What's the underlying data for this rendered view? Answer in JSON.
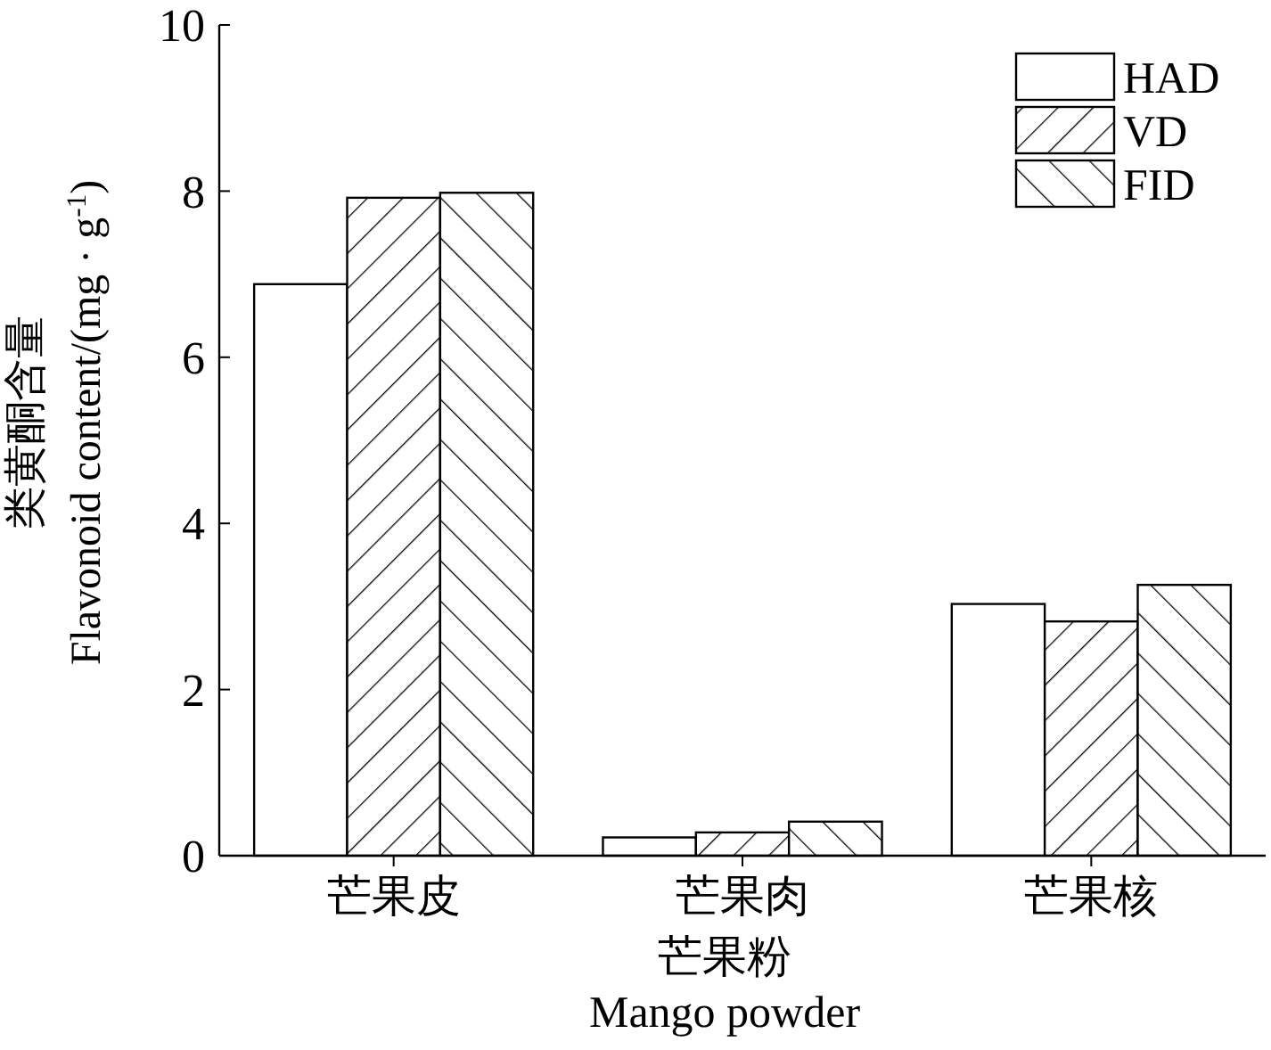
{
  "chart_data": {
    "type": "bar",
    "categories": [
      "芒果皮",
      "芒果肉",
      "芒果核"
    ],
    "xlabel": "芒果粉\nMango powder",
    "ylabel": "类黄酮含量\nFlavonoid content/(mg · g$^{-1}$)",
    "ylim": [
      0,
      10
    ],
    "yticks": [
      0,
      2,
      4,
      6,
      8,
      10
    ],
    "legend": "top right",
    "grid": false,
    "series": [
      {
        "name": "HAD",
        "color": "#ffffff",
        "values": [
          6.88,
          0.22,
          3.03
        ]
      },
      {
        "name": "VD",
        "color": "#ffffff",
        "values": [
          7.92,
          0.28,
          2.82
        ]
      },
      {
        "name": "FID",
        "color": "#ffffff",
        "values": [
          7.98,
          0.41,
          3.26
        ]
      }
    ]
  }
}
